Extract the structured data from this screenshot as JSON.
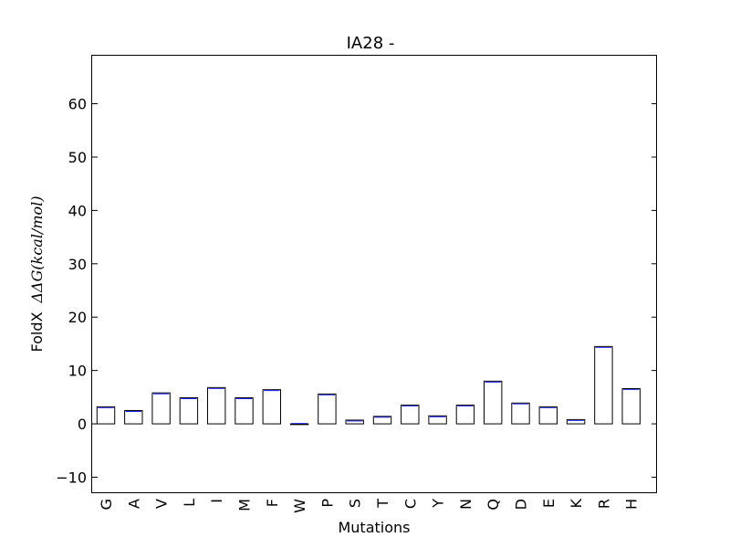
{
  "chart_data": {
    "type": "bar",
    "title": "IA28 -",
    "xlabel": "Mutations",
    "ylabel_prefix": "FoldX",
    "ylabel_math": "ΔΔG(kcal/mol)",
    "categories": [
      "G",
      "A",
      "V",
      "L",
      "I",
      "M",
      "F",
      "W",
      "P",
      "S",
      "T",
      "C",
      "Y",
      "N",
      "Q",
      "D",
      "E",
      "K",
      "R",
      "H"
    ],
    "values": [
      3.2,
      2.5,
      5.8,
      4.9,
      6.8,
      4.9,
      6.4,
      -0.1,
      5.6,
      0.7,
      1.4,
      3.5,
      1.5,
      3.5,
      8.0,
      3.9,
      3.2,
      0.8,
      14.5,
      6.6
    ],
    "ylim": [
      -13,
      69
    ],
    "yticks": [
      -10,
      0,
      10,
      20,
      30,
      40,
      50,
      60
    ],
    "ytick_labels": [
      "−10",
      "0",
      "10",
      "20",
      "30",
      "40",
      "50",
      "60"
    ],
    "grid": false,
    "bar_fill": "#ffffff",
    "bar_edge": "#000000",
    "bar_top_accent": "#0000ff"
  }
}
